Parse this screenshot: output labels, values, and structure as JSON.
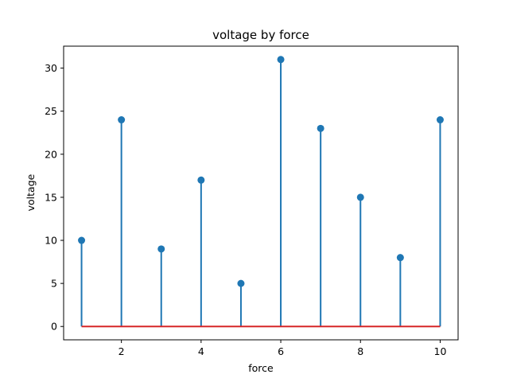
{
  "chart_data": {
    "type": "stem",
    "title": "voltage by  force",
    "xlabel": "force",
    "ylabel": "voltage",
    "x": [
      1,
      2,
      3,
      4,
      5,
      6,
      7,
      8,
      9,
      10
    ],
    "y": [
      10,
      24,
      9,
      17,
      5,
      31,
      23,
      15,
      8,
      24
    ],
    "xlim": [
      0.55,
      10.45
    ],
    "ylim": [
      -1.55,
      32.55
    ],
    "xticks": [
      2,
      4,
      6,
      8,
      10
    ],
    "yticks": [
      0,
      5,
      10,
      15,
      20,
      25,
      30
    ],
    "baseline": 0,
    "grid": false,
    "colors": {
      "stem": "#1f77b4",
      "marker": "#1f77b4",
      "baseline": "#d62728",
      "axes": "#000000"
    }
  }
}
